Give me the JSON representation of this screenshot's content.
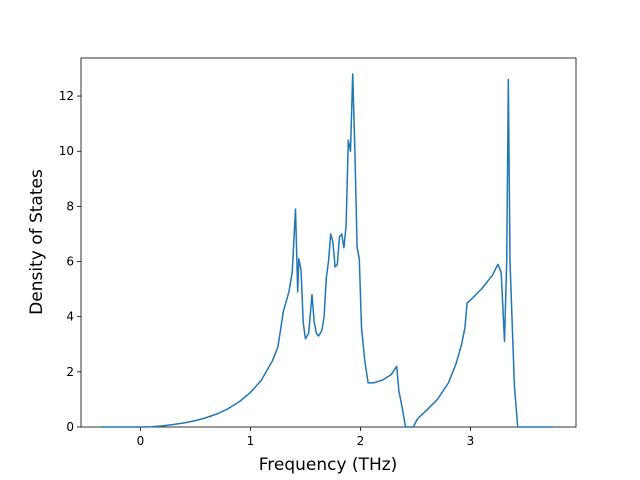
{
  "chart_data": {
    "type": "line",
    "xlabel": "Frequency (THz)",
    "ylabel": "Density of States",
    "x": [
      -0.35,
      0,
      0.1,
      0.2,
      0.3,
      0.4,
      0.5,
      0.6,
      0.7,
      0.8,
      0.9,
      1.0,
      1.1,
      1.2,
      1.25,
      1.3,
      1.35,
      1.38,
      1.41,
      1.43,
      1.44,
      1.46,
      1.48,
      1.5,
      1.53,
      1.56,
      1.58,
      1.6,
      1.62,
      1.65,
      1.67,
      1.69,
      1.71,
      1.73,
      1.75,
      1.77,
      1.79,
      1.81,
      1.83,
      1.85,
      1.87,
      1.89,
      1.91,
      1.93,
      1.95,
      1.97,
      1.99,
      2.01,
      2.04,
      2.07,
      2.12,
      2.2,
      2.28,
      2.33,
      2.35,
      2.38,
      2.41,
      2.48,
      2.52,
      2.6,
      2.7,
      2.8,
      2.87,
      2.92,
      2.95,
      2.97,
      3.0,
      3.1,
      3.2,
      3.25,
      3.28,
      3.31,
      3.33,
      3.345,
      3.36,
      3.4,
      3.43,
      3.75
    ],
    "series": [
      {
        "color": "#1f77b4",
        "values": [
          0,
          0,
          0.01,
          0.04,
          0.09,
          0.15,
          0.23,
          0.34,
          0.48,
          0.67,
          0.92,
          1.25,
          1.7,
          2.4,
          2.9,
          4.2,
          4.9,
          5.6,
          7.9,
          4.9,
          6.1,
          5.7,
          3.8,
          3.2,
          3.4,
          4.8,
          3.8,
          3.4,
          3.3,
          3.5,
          4.0,
          5.4,
          6.0,
          7.0,
          6.7,
          5.8,
          5.9,
          6.9,
          7.0,
          6.5,
          7.3,
          10.4,
          10.0,
          12.8,
          10.0,
          6.5,
          6.1,
          3.6,
          2.4,
          1.6,
          1.6,
          1.7,
          1.9,
          2.2,
          1.3,
          0.7,
          0,
          0,
          0.3,
          0.6,
          1.0,
          1.6,
          2.3,
          3.0,
          3.6,
          4.5,
          4.6,
          5.0,
          5.5,
          5.9,
          5.6,
          3.1,
          6.0,
          12.6,
          6.0,
          1.5,
          0,
          0
        ]
      }
    ],
    "xlim": [
      -0.54,
      3.96
    ],
    "ylim": [
      0,
      13.38
    ],
    "xticks": [
      0,
      1,
      2,
      3
    ],
    "yticks": [
      0,
      2,
      4,
      6,
      8,
      10,
      12
    ]
  }
}
